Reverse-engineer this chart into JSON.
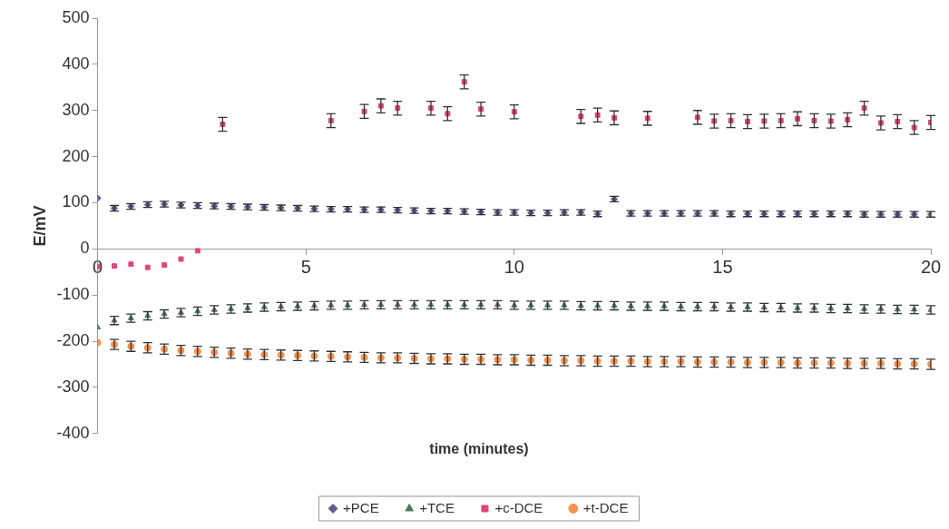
{
  "chart_data": {
    "type": "scatter",
    "xlabel": "time (minutes)",
    "ylabel": "E/mV",
    "xlim": [
      0,
      20
    ],
    "xticks": [
      0,
      5,
      10,
      15,
      20
    ],
    "ylim": [
      -400,
      500
    ],
    "yticks": [
      -400,
      -300,
      -200,
      -100,
      0,
      100,
      200,
      300,
      400,
      500
    ],
    "grid": false,
    "legend": "bottom",
    "series": [
      {
        "name": "+PCE",
        "color": "#5a5e8c",
        "marker": "diamond",
        "x": [
          0,
          0.4,
          0.8,
          1.2,
          1.6,
          2.0,
          2.4,
          2.8,
          3.2,
          3.6,
          4.0,
          4.4,
          4.8,
          5.2,
          5.6,
          6.0,
          6.4,
          6.8,
          7.2,
          7.6,
          8.0,
          8.4,
          8.8,
          9.2,
          9.6,
          10.0,
          10.4,
          10.8,
          11.2,
          11.6,
          12.0,
          12.4,
          12.8,
          13.2,
          13.6,
          14.0,
          14.4,
          14.8,
          15.2,
          15.6,
          16.0,
          16.4,
          16.8,
          17.2,
          17.6,
          18.0,
          18.4,
          18.8,
          19.2,
          19.6,
          20.0
        ],
        "values": [
          110,
          88,
          92,
          96,
          97,
          95,
          94,
          93,
          92,
          91,
          90,
          89,
          88,
          87,
          86,
          86,
          85,
          85,
          84,
          83,
          82,
          82,
          81,
          80,
          79,
          79,
          78,
          78,
          79,
          79,
          76,
          108,
          77,
          77,
          77,
          77,
          77,
          77,
          76,
          76,
          76,
          76,
          76,
          76,
          76,
          76,
          75,
          75,
          75,
          75,
          75
        ],
        "errors": [
          null,
          6,
          6,
          6,
          6,
          6,
          6,
          6,
          6,
          6,
          6,
          6,
          6,
          6,
          6,
          6,
          6,
          6,
          6,
          6,
          6,
          6,
          6,
          6,
          6,
          6,
          6,
          6,
          6,
          6,
          6,
          6,
          6,
          6,
          6,
          6,
          6,
          6,
          6,
          6,
          6,
          6,
          6,
          6,
          6,
          6,
          6,
          6,
          6,
          6,
          6
        ]
      },
      {
        "name": "+TCE",
        "color": "#4e7a5a",
        "marker": "triangle",
        "x": [
          0,
          0.4,
          0.8,
          1.2,
          1.6,
          2.0,
          2.4,
          2.8,
          3.2,
          3.6,
          4.0,
          4.4,
          4.8,
          5.2,
          5.6,
          6.0,
          6.4,
          6.8,
          7.2,
          7.6,
          8.0,
          8.4,
          8.8,
          9.2,
          9.6,
          10.0,
          10.4,
          10.8,
          11.2,
          11.6,
          12.0,
          12.4,
          12.8,
          13.2,
          13.6,
          14.0,
          14.4,
          14.8,
          15.2,
          15.6,
          16.0,
          16.4,
          16.8,
          17.2,
          17.6,
          18.0,
          18.4,
          18.8,
          19.2,
          19.6,
          20.0
        ],
        "values": [
          -170,
          -155,
          -150,
          -145,
          -141,
          -138,
          -135,
          -132,
          -130,
          -128,
          -126,
          -125,
          -124,
          -123,
          -122,
          -122,
          -121,
          -121,
          -121,
          -121,
          -121,
          -121,
          -121,
          -121,
          -121,
          -122,
          -122,
          -122,
          -122,
          -123,
          -123,
          -123,
          -124,
          -124,
          -124,
          -125,
          -125,
          -125,
          -126,
          -126,
          -127,
          -127,
          -128,
          -128,
          -129,
          -129,
          -130,
          -130,
          -131,
          -131,
          -132
        ],
        "errors": [
          null,
          9,
          9,
          9,
          9,
          9,
          9,
          9,
          9,
          9,
          9,
          9,
          9,
          9,
          9,
          9,
          9,
          9,
          9,
          9,
          9,
          9,
          9,
          9,
          9,
          9,
          9,
          9,
          9,
          9,
          9,
          9,
          9,
          9,
          9,
          9,
          9,
          9,
          9,
          9,
          9,
          9,
          9,
          9,
          9,
          9,
          9,
          9,
          9,
          9,
          9
        ]
      },
      {
        "name": "+c-DCE",
        "color": "#e0457b",
        "marker": "square",
        "x": [
          0,
          0.4,
          0.8,
          1.2,
          1.6,
          2.0,
          2.4,
          3.0,
          5.6,
          6.4,
          6.8,
          7.2,
          8.0,
          8.4,
          8.8,
          9.2,
          10.0,
          11.6,
          12.0,
          12.4,
          13.2,
          14.4,
          14.8,
          15.2,
          15.6,
          16.0,
          16.4,
          16.8,
          17.2,
          17.6,
          18.0,
          18.4,
          18.8,
          19.2,
          19.6,
          20.0
        ],
        "values": [
          -38,
          -37,
          -33,
          -40,
          -35,
          -22,
          -4,
          270,
          278,
          298,
          310,
          305,
          305,
          293,
          362,
          303,
          297,
          287,
          290,
          284,
          283,
          285,
          277,
          278,
          276,
          277,
          278,
          282,
          278,
          277,
          280,
          305,
          273,
          276,
          263,
          274
        ],
        "errors": [
          null,
          null,
          null,
          null,
          null,
          null,
          null,
          15,
          15,
          15,
          15,
          15,
          15,
          15,
          15,
          15,
          15,
          15,
          15,
          15,
          15,
          15,
          15,
          15,
          15,
          15,
          15,
          15,
          15,
          15,
          15,
          15,
          15,
          15,
          15,
          15
        ]
      },
      {
        "name": "+t-DCE",
        "color": "#f5924e",
        "marker": "circle",
        "x": [
          0,
          0.4,
          0.8,
          1.2,
          1.6,
          2.0,
          2.4,
          2.8,
          3.2,
          3.6,
          4.0,
          4.4,
          4.8,
          5.2,
          5.6,
          6.0,
          6.4,
          6.8,
          7.2,
          7.6,
          8.0,
          8.4,
          8.8,
          9.2,
          9.6,
          10.0,
          10.4,
          10.8,
          11.2,
          11.6,
          12.0,
          12.4,
          12.8,
          13.2,
          13.6,
          14.0,
          14.4,
          14.8,
          15.2,
          15.6,
          16.0,
          16.4,
          16.8,
          17.2,
          17.6,
          18.0,
          18.4,
          18.8,
          19.2,
          19.6,
          20.0
        ],
        "values": [
          -203,
          -207,
          -211,
          -214,
          -217,
          -220,
          -222,
          -224,
          -226,
          -228,
          -229,
          -230,
          -231,
          -232,
          -233,
          -234,
          -235,
          -236,
          -236,
          -237,
          -238,
          -238,
          -239,
          -239,
          -240,
          -240,
          -241,
          -241,
          -242,
          -242,
          -243,
          -243,
          -243,
          -244,
          -244,
          -244,
          -245,
          -245,
          -245,
          -246,
          -246,
          -246,
          -247,
          -247,
          -247,
          -248,
          -248,
          -248,
          -249,
          -249,
          -250
        ],
        "errors": [
          null,
          11,
          11,
          11,
          11,
          11,
          11,
          11,
          11,
          11,
          11,
          11,
          11,
          11,
          11,
          11,
          11,
          11,
          11,
          11,
          11,
          11,
          11,
          11,
          11,
          11,
          11,
          11,
          11,
          11,
          11,
          11,
          11,
          11,
          11,
          11,
          11,
          11,
          11,
          11,
          11,
          11,
          11,
          11,
          11,
          11,
          11,
          11,
          11,
          11,
          11
        ]
      }
    ]
  }
}
